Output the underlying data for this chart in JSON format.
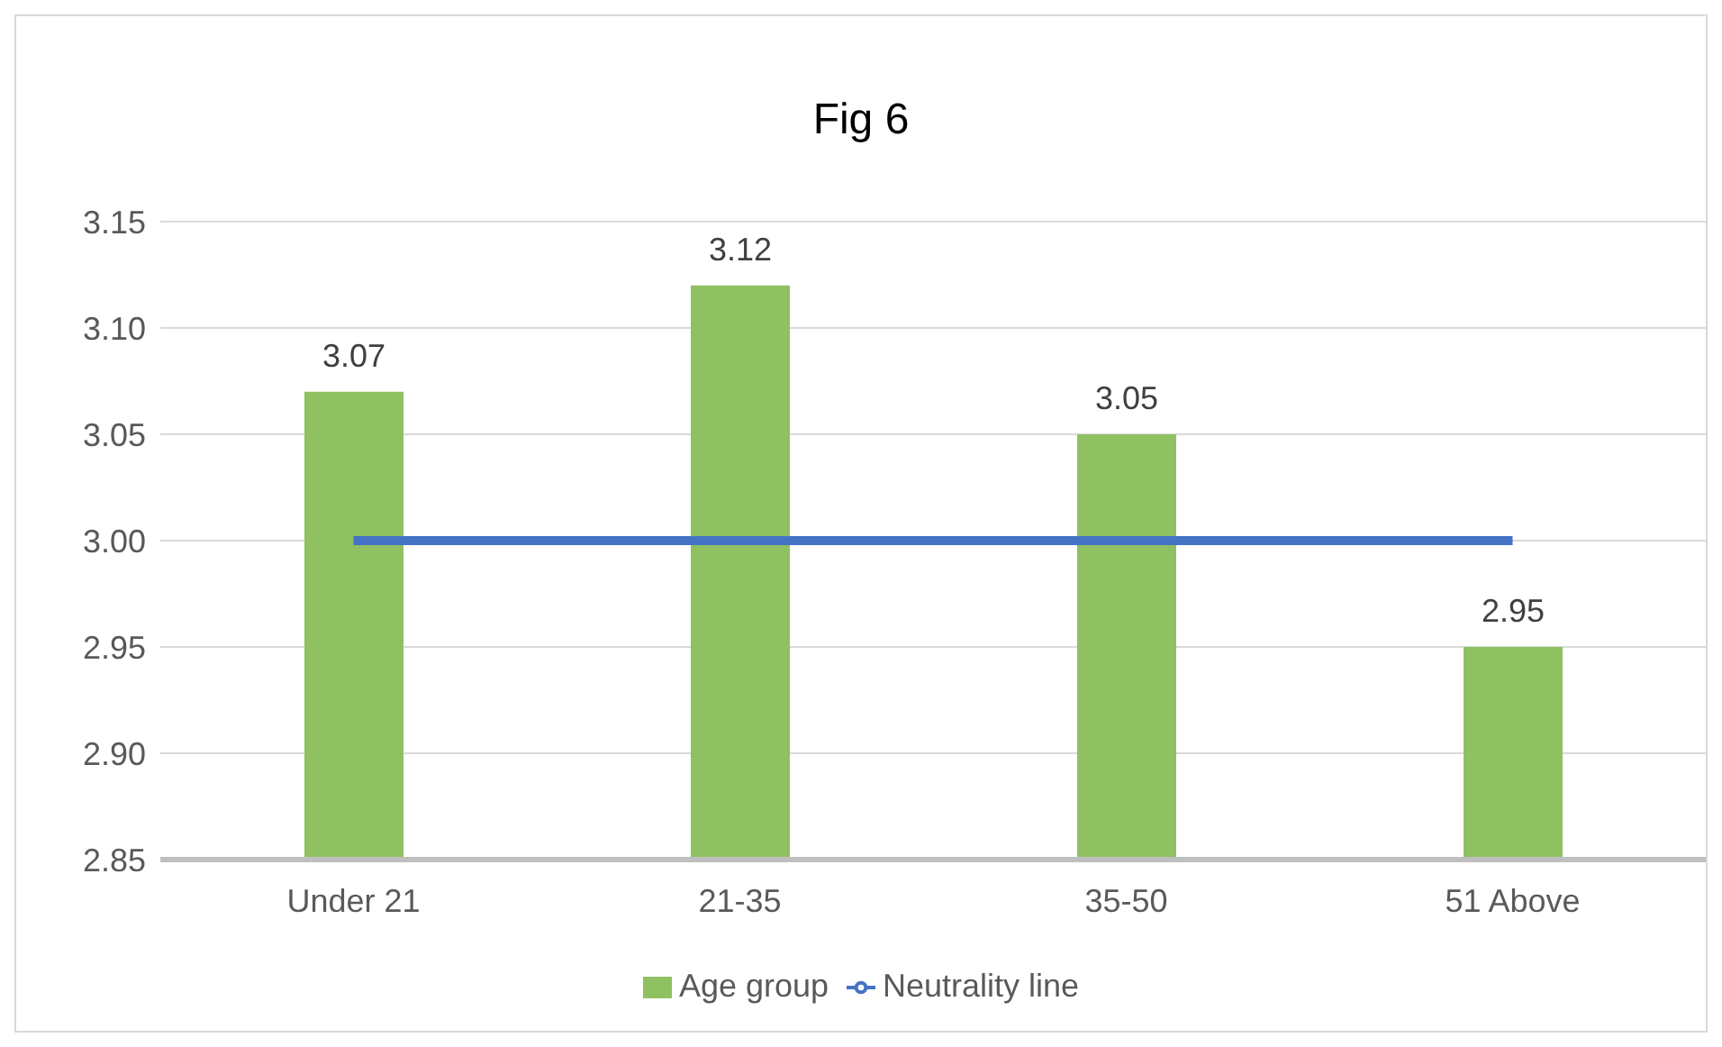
{
  "chart_data": {
    "type": "bar",
    "title": "Fig 6",
    "categories": [
      "Under 21",
      "21-35",
      "35-50",
      "51 Above"
    ],
    "series": [
      {
        "name": "Age group",
        "color": "#8fc163",
        "values": [
          3.07,
          3.12,
          3.05,
          2.95
        ],
        "value_labels": [
          "3.07",
          "3.12",
          "3.05",
          "2.95"
        ]
      },
      {
        "name": "Neutrality line",
        "type": "line",
        "color": "#4472c4",
        "values": [
          3,
          3,
          3,
          3
        ]
      }
    ],
    "ylim": [
      2.85,
      3.15
    ],
    "yticks": [
      2.85,
      {
        "value": 2.9,
        "label": "2.90"
      },
      2.95,
      {
        "value": 3,
        "label": "3.00"
      },
      3.05,
      {
        "value": 3.1,
        "label": "3.10"
      },
      3.15
    ],
    "grid": "y",
    "legend": "bottom",
    "marker": "none"
  }
}
